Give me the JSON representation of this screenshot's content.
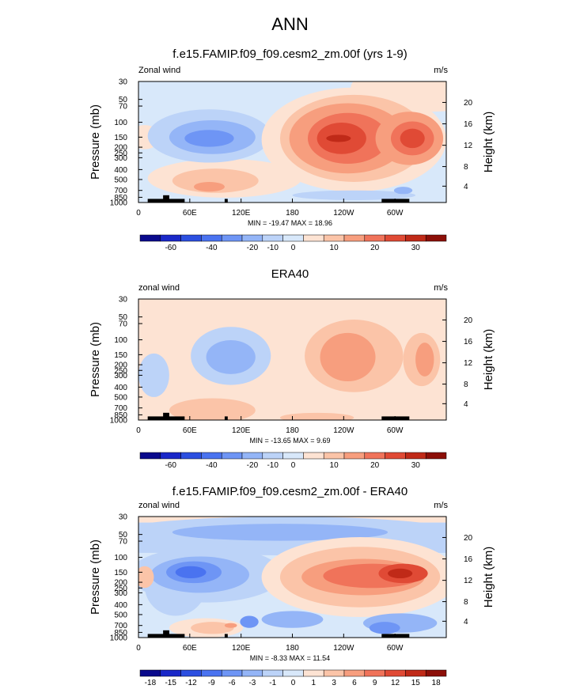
{
  "page_title": "ANN",
  "chart_data": [
    {
      "type": "heatmap",
      "title": "f.e15.FAMIP.f09_f09.cesm2_zm.00f (yrs 1-9)",
      "corner_left": "Zonal wind",
      "corner_right": "m/s",
      "xlabel": "",
      "ylabel": "Pressure (mb)",
      "y2label": "Height (km)",
      "x_ticks": [
        "0",
        "60E",
        "120E",
        "180",
        "120W",
        "60W"
      ],
      "y_ticks": [
        "30",
        "50",
        "70",
        "100",
        "150",
        "200",
        "250",
        "300",
        "400",
        "500",
        "700",
        "850",
        "1000"
      ],
      "y2_ticks": [
        "20",
        "16",
        "12",
        "8",
        "4"
      ],
      "stats": "MIN = -19.47  MAX =  18.96",
      "colorbar_labels": [
        "-60",
        "-40",
        "-20",
        "-10",
        "0",
        "10",
        "20",
        "30"
      ],
      "extremes": {
        "min": -19.47,
        "max": 18.96
      }
    },
    {
      "type": "heatmap",
      "title": "ERA40",
      "corner_left": "zonal wind",
      "corner_right": "m/s",
      "xlabel": "",
      "ylabel": "Pressure (mb)",
      "y2label": "Height (km)",
      "x_ticks": [
        "0",
        "60E",
        "120E",
        "180",
        "120W",
        "60W"
      ],
      "y_ticks": [
        "30",
        "50",
        "70",
        "100",
        "150",
        "200",
        "250",
        "300",
        "400",
        "500",
        "700",
        "850",
        "1000"
      ],
      "y2_ticks": [
        "20",
        "16",
        "12",
        "8",
        "4"
      ],
      "stats": "MIN = -13.65  MAX =  9.69",
      "colorbar_labels": [
        "-60",
        "-40",
        "-20",
        "-10",
        "0",
        "10",
        "20",
        "30"
      ],
      "extremes": {
        "min": -13.65,
        "max": 9.69
      }
    },
    {
      "type": "heatmap",
      "title": "f.e15.FAMIP.f09_f09.cesm2_zm.00f - ERA40",
      "corner_left": "zonal wind",
      "corner_right": "m/s",
      "xlabel": "",
      "ylabel": "Pressure (mb)",
      "y2label": "Height (km)",
      "x_ticks": [
        "0",
        "60E",
        "120E",
        "180",
        "120W",
        "60W"
      ],
      "y_ticks": [
        "30",
        "50",
        "70",
        "100",
        "150",
        "200",
        "250",
        "300",
        "400",
        "500",
        "700",
        "850",
        "1000"
      ],
      "y2_ticks": [
        "20",
        "16",
        "12",
        "8",
        "4"
      ],
      "stats": "MIN = -8.33  MAX =  11.54",
      "colorbar_labels": [
        "-18",
        "-15",
        "-12",
        "-9",
        "-6",
        "-3",
        "-1",
        "0",
        "1",
        "3",
        "6",
        "9",
        "12",
        "15",
        "18"
      ],
      "extremes": {
        "min": -8.33,
        "max": 11.54
      }
    }
  ],
  "palette": [
    "#0a0a8c",
    "#1a28c8",
    "#2c4fe0",
    "#4a73f0",
    "#6e95f5",
    "#94b5f7",
    "#bcd3f8",
    "#d8e8fa",
    "#fde3d3",
    "#fbc4a8",
    "#f79e7e",
    "#f0735a",
    "#e04a35",
    "#c02a18",
    "#8c0f08"
  ]
}
